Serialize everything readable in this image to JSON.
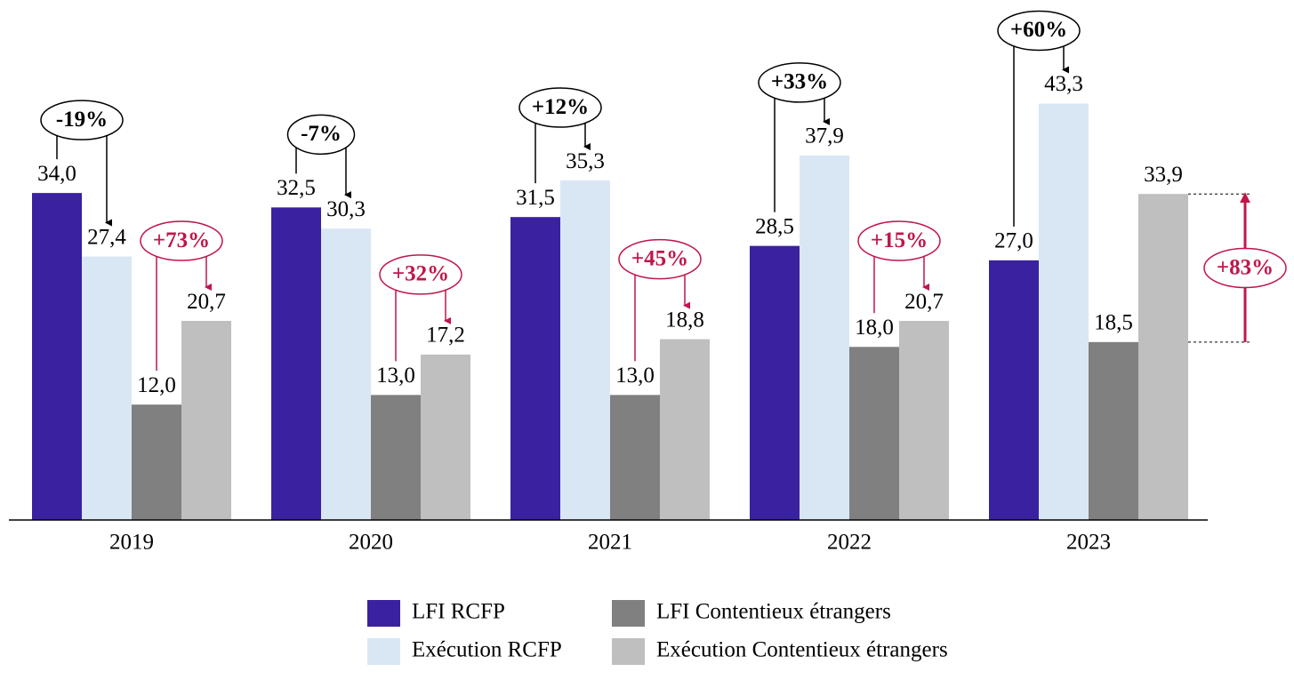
{
  "chart_data": {
    "type": "bar",
    "categories": [
      "2019",
      "2020",
      "2021",
      "2022",
      "2023"
    ],
    "series": [
      {
        "name": "LFI RCFP",
        "color": "#3a21a0",
        "values": [
          34.0,
          32.5,
          31.5,
          28.5,
          27.0
        ],
        "value_labels": [
          "34,0",
          "32,5",
          "31,5",
          "28,5",
          "27,0"
        ]
      },
      {
        "name": "Exécution RCFP",
        "color": "#d9e7f5",
        "values": [
          27.4,
          30.3,
          35.3,
          37.9,
          43.3
        ],
        "value_labels": [
          "27,4",
          "30,3",
          "35,3",
          "37,9",
          "43,3"
        ]
      },
      {
        "name": "LFI Contentieux étrangers",
        "color": "#808080",
        "values": [
          12.0,
          13.0,
          13.0,
          18.0,
          18.5
        ],
        "value_labels": [
          "12,0",
          "13,0",
          "13,0",
          "18,0",
          "18,5"
        ]
      },
      {
        "name": "Exécution Contentieux étrangers",
        "color": "#bfbfbf",
        "values": [
          20.7,
          17.2,
          18.8,
          20.7,
          33.9
        ],
        "value_labels": [
          "20,7",
          "17,2",
          "18,8",
          "20,7",
          "33,9"
        ]
      }
    ],
    "rcfp_change": [
      "-19%",
      "-7%",
      "+12%",
      "+33%",
      "+60%"
    ],
    "contentieux_change": [
      "+73%",
      "+32%",
      "+45%",
      "+15%",
      "+83%"
    ],
    "change_colors": [
      "#000000",
      "#c0164a"
    ],
    "ylim": [
      0,
      50
    ]
  }
}
